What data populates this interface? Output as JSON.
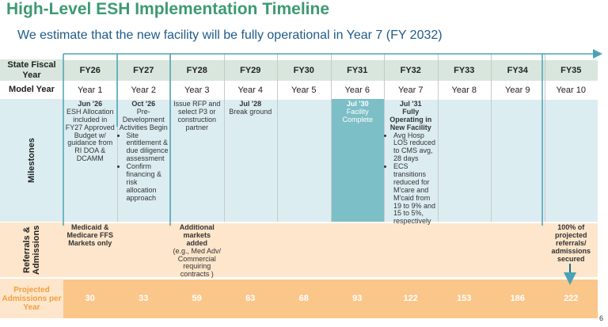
{
  "header": {
    "title": "High-Level ESH Implementation Timeline",
    "subtitle": "We estimate that the new facility will be fully operational in Year 7 (FY 2032)"
  },
  "table": {
    "row_headers": [
      "State Fiscal Year",
      "Model Year",
      "Milestones",
      "Referrals & Admissions",
      "Projected Admissions per Year"
    ],
    "fiscal_years": [
      "FY26",
      "FY27",
      "FY28",
      "FY29",
      "FY30",
      "FY31",
      "FY32",
      "FY33",
      "FY34",
      "FY35"
    ],
    "model_years": [
      "Year 1",
      "Year 2",
      "Year 3",
      "Year 4",
      "Year 5",
      "Year 6",
      "Year 7",
      "Year 8",
      "Year 9",
      "Year 10"
    ],
    "milestones": [
      {
        "heading": "Jun '26",
        "text": "ESH Allocation included in FY27 Approved Budget w/ guidance from RI DOA & DCAMM"
      },
      {
        "heading": "Oct '26",
        "text": "Pre-Development Activities Begin",
        "bullets": [
          "Site entitlement & due diligence assessment",
          "Confirm financing & risk allocation approach"
        ]
      },
      {
        "text": "Issue RFP and select P3 or construction partner"
      },
      {
        "heading": "Jul '28",
        "text": "Break ground"
      },
      null,
      {
        "heading": "Jul '30",
        "text": "Facility Complete",
        "highlight": true
      },
      {
        "heading": "Jul '31",
        "subheading": "Fully Operating in New Facility",
        "bullets": [
          "Avg Hosp LOS reduced to CMS avg, 28 days",
          "ECS transitions reduced for M'care and M'caid from 19 to 9% and 15 to 5%, respectively"
        ]
      },
      null,
      null,
      null
    ],
    "referrals": [
      {
        "heading": "Medicaid & Medicare FFS Markets only"
      },
      null,
      {
        "heading": "Additional markets added",
        "text": "(e.g., Med Adv/ Commercial requiring contracts )"
      },
      null,
      null,
      null,
      null,
      null,
      null,
      {
        "heading": "100% of projected referrals/ admissions secured"
      }
    ],
    "admissions": [
      30,
      33,
      59,
      63,
      68,
      93,
      122,
      153,
      186,
      222
    ]
  },
  "page_number": "6"
}
